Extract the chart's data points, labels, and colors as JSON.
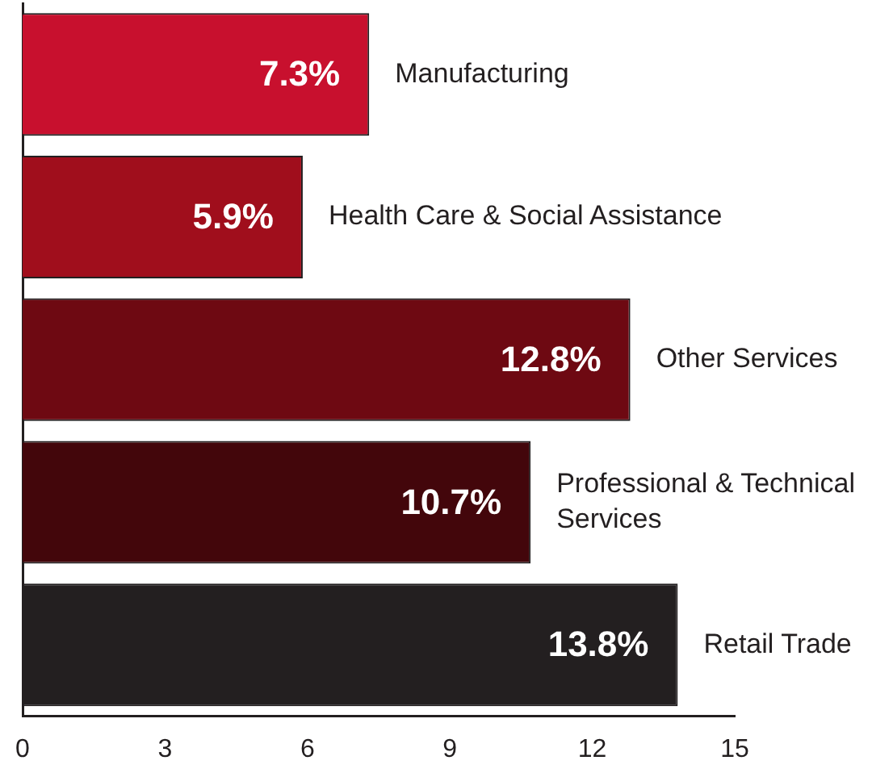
{
  "chart_data": {
    "type": "bar",
    "orientation": "horizontal",
    "categories": [
      "Manufacturing",
      "Health Care & Social Assistance",
      "Other Services",
      "Professional & Technical Services",
      "Retail Trade"
    ],
    "values": [
      7.3,
      5.9,
      12.8,
      10.7,
      13.8
    ],
    "colors": [
      "#c8102e",
      "#a00e1c",
      "#6e0912",
      "#43060b",
      "#231f20"
    ],
    "value_labels": [
      "7.3%",
      "5.9%",
      "12.8%",
      "10.7%",
      "13.8%"
    ],
    "xlim": [
      0,
      15
    ],
    "xticks": [
      0,
      3,
      6,
      9,
      12,
      15
    ],
    "grid": false,
    "legend": false,
    "tick_labels": "x"
  }
}
